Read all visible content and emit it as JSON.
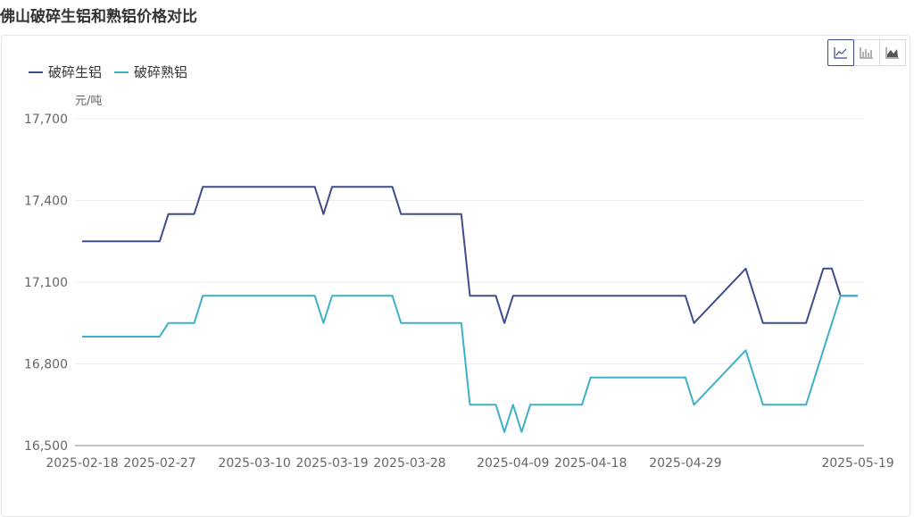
{
  "page": {
    "title": "佛山破碎生铝和熟铝价格对比"
  },
  "toolbar": {
    "buttons": [
      {
        "icon": "line-chart-icon",
        "active": true
      },
      {
        "icon": "bar-chart-icon",
        "active": false
      },
      {
        "icon": "area-chart-icon",
        "active": false
      }
    ]
  },
  "colors": {
    "series1": "#3f4d8b",
    "series2": "#3eb1c7",
    "grid": "#ececec",
    "axis": "#888888"
  },
  "chart_data": {
    "type": "line",
    "ylabel": "元/吨",
    "ylim": [
      16500,
      17700
    ],
    "yticks": [
      "16,500",
      "16,800",
      "17,100",
      "17,400",
      "17,700"
    ],
    "ytick_values": [
      16500,
      16800,
      17100,
      17400,
      17700
    ],
    "xlim": [
      "2025-02-18",
      "2025-05-19"
    ],
    "xticks": [
      "2025-02-18",
      "2025-02-27",
      "2025-03-10",
      "2025-03-19",
      "2025-03-28",
      "2025-04-09",
      "2025-04-18",
      "2025-04-29",
      "2025-05-19"
    ],
    "legend_position": "top-left",
    "grid": true,
    "series": [
      {
        "name": "破碎生铝",
        "color": "#3f4d8b",
        "points": [
          [
            "2025-02-18",
            17250
          ],
          [
            "2025-02-27",
            17250
          ],
          [
            "2025-02-28",
            17350
          ],
          [
            "2025-03-03",
            17350
          ],
          [
            "2025-03-04",
            17450
          ],
          [
            "2025-03-17",
            17450
          ],
          [
            "2025-03-18",
            17350
          ],
          [
            "2025-03-19",
            17450
          ],
          [
            "2025-03-26",
            17450
          ],
          [
            "2025-03-27",
            17350
          ],
          [
            "2025-04-03",
            17350
          ],
          [
            "2025-04-04",
            17050
          ],
          [
            "2025-04-07",
            17050
          ],
          [
            "2025-04-08",
            16950
          ],
          [
            "2025-04-09",
            17050
          ],
          [
            "2025-04-29",
            17050
          ],
          [
            "2025-04-30",
            16950
          ],
          [
            "2025-05-06",
            17150
          ],
          [
            "2025-05-08",
            16950
          ],
          [
            "2025-05-13",
            16950
          ],
          [
            "2025-05-15",
            17150
          ],
          [
            "2025-05-16",
            17150
          ],
          [
            "2025-05-17",
            17050
          ],
          [
            "2025-05-19",
            17050
          ]
        ]
      },
      {
        "name": "破碎熟铝",
        "color": "#3eb1c7",
        "points": [
          [
            "2025-02-18",
            16900
          ],
          [
            "2025-02-27",
            16900
          ],
          [
            "2025-02-28",
            16950
          ],
          [
            "2025-03-03",
            16950
          ],
          [
            "2025-03-04",
            17050
          ],
          [
            "2025-03-17",
            17050
          ],
          [
            "2025-03-18",
            16950
          ],
          [
            "2025-03-19",
            17050
          ],
          [
            "2025-03-26",
            17050
          ],
          [
            "2025-03-27",
            16950
          ],
          [
            "2025-04-03",
            16950
          ],
          [
            "2025-04-04",
            16650
          ],
          [
            "2025-04-07",
            16650
          ],
          [
            "2025-04-08",
            16550
          ],
          [
            "2025-04-09",
            16650
          ],
          [
            "2025-04-10",
            16550
          ],
          [
            "2025-04-11",
            16650
          ],
          [
            "2025-04-17",
            16650
          ],
          [
            "2025-04-18",
            16750
          ],
          [
            "2025-04-29",
            16750
          ],
          [
            "2025-04-30",
            16650
          ],
          [
            "2025-05-06",
            16850
          ],
          [
            "2025-05-08",
            16650
          ],
          [
            "2025-05-13",
            16650
          ],
          [
            "2025-05-17",
            17050
          ],
          [
            "2025-05-19",
            17050
          ]
        ]
      }
    ]
  }
}
